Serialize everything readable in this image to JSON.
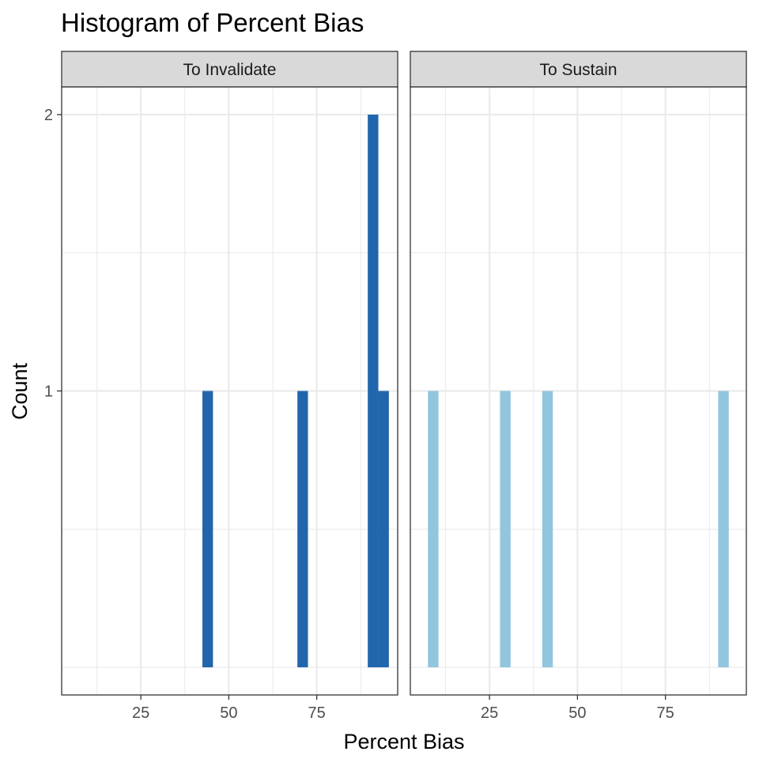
{
  "chart_data": {
    "type": "bar",
    "title": "Histogram of Percent Bias",
    "xlabel": "Percent Bias",
    "ylabel": "Count",
    "xlim": [
      2.5,
      98
    ],
    "ylim": [
      -0.1,
      2.1
    ],
    "x_ticks": [
      25,
      50,
      75
    ],
    "y_ticks": [
      1,
      2
    ],
    "grid": true,
    "bin_width": 3,
    "panels": [
      {
        "name": "To Invalidate",
        "color": "#2166ac",
        "bins": [
          {
            "x": 44,
            "count": 1
          },
          {
            "x": 71,
            "count": 1
          },
          {
            "x": 91,
            "count": 2
          },
          {
            "x": 94,
            "count": 1
          }
        ]
      },
      {
        "name": "To Sustain",
        "color": "#92c5de",
        "bins": [
          {
            "x": 9,
            "count": 1
          },
          {
            "x": 29.5,
            "count": 1
          },
          {
            "x": 41.5,
            "count": 1
          },
          {
            "x": 91.5,
            "count": 1
          }
        ]
      }
    ]
  }
}
